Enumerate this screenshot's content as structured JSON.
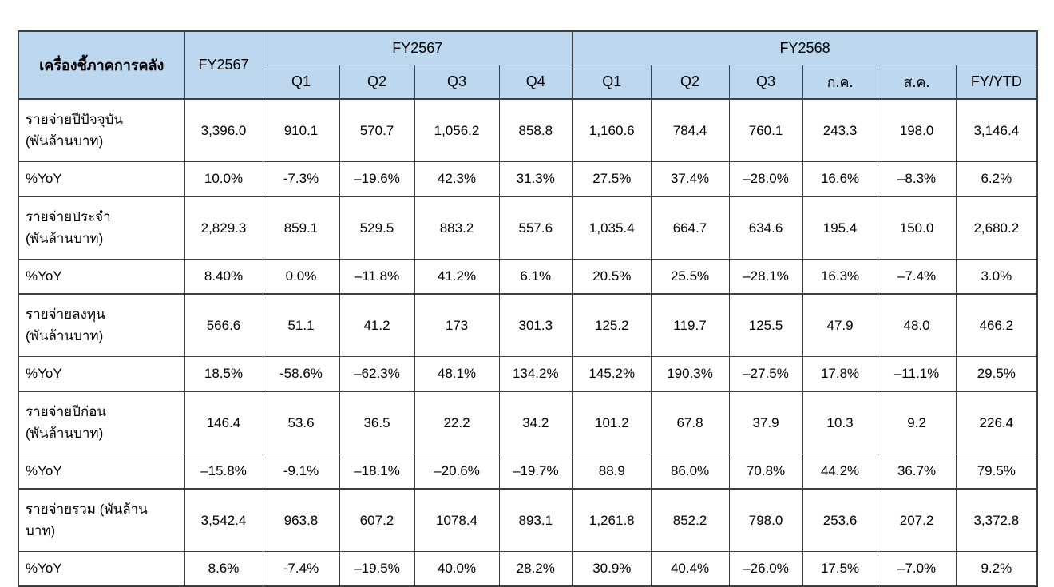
{
  "table": {
    "colors": {
      "header_bg": "#BDD7EE",
      "border": "#3f3f3f",
      "text": "#000000"
    },
    "header": {
      "indicator_label": "เครื่องชี้ภาคการคลัง",
      "fy2567_annual": "FY2567",
      "fy2567_group": "FY2567",
      "fy2568_group": "FY2568",
      "fy2567_quarters": [
        "Q1",
        "Q2",
        "Q3",
        "Q4"
      ],
      "fy2568_periods": [
        "Q1",
        "Q2",
        "Q3",
        "ก.ค.",
        "ส.ค.",
        "FY/YTD"
      ]
    },
    "rows": [
      {
        "type": "expense",
        "label": "รายจ่ายปีปัจจุบัน\n(พันล้านบาท)",
        "values": [
          "3,396.0",
          "910.1",
          "570.7",
          "1,056.2",
          "858.8",
          "1,160.6",
          "784.4",
          "760.1",
          "243.3",
          "198.0",
          "3,146.4"
        ]
      },
      {
        "type": "yoy",
        "label": "%YoY",
        "values": [
          "10.0%",
          "-7.3%",
          "–19.6%",
          "42.3%",
          "31.3%",
          "27.5%",
          "37.4%",
          "–28.0%",
          "16.6%",
          "–8.3%",
          "6.2%"
        ]
      },
      {
        "type": "expense",
        "label": "รายจ่ายประจำ\n(พันล้านบาท)",
        "values": [
          "2,829.3",
          "859.1",
          "529.5",
          "883.2",
          "557.6",
          "1,035.4",
          "664.7",
          "634.6",
          "195.4",
          "150.0",
          "2,680.2"
        ]
      },
      {
        "type": "yoy",
        "label": "%YoY",
        "values": [
          "8.40%",
          "0.0%",
          "–11.8%",
          "41.2%",
          "6.1%",
          "20.5%",
          "25.5%",
          "–28.1%",
          "16.3%",
          "–7.4%",
          "3.0%"
        ]
      },
      {
        "type": "expense",
        "label": "รายจ่ายลงทุน\n(พันล้านบาท)",
        "values": [
          "566.6",
          "51.1",
          "41.2",
          "173",
          "301.3",
          "125.2",
          "119.7",
          "125.5",
          "47.9",
          "48.0",
          "466.2"
        ]
      },
      {
        "type": "yoy",
        "label": "%YoY",
        "values": [
          "18.5%",
          "-58.6%",
          "–62.3%",
          "48.1%",
          "134.2%",
          "145.2%",
          "190.3%",
          "–27.5%",
          "17.8%",
          "–11.1%",
          "29.5%"
        ]
      },
      {
        "type": "expense",
        "label": "รายจ่ายปีก่อน\n(พันล้านบาท)",
        "values": [
          "146.4",
          "53.6",
          "36.5",
          "22.2",
          "34.2",
          "101.2",
          "67.8",
          "37.9",
          "10.3",
          "9.2",
          "226.4"
        ]
      },
      {
        "type": "yoy",
        "label": "%YoY",
        "values": [
          "–15.8%",
          "-9.1%",
          "–18.1%",
          "–20.6%",
          "–19.7%",
          "88.9",
          "86.0%",
          "70.8%",
          "44.2%",
          "36.7%",
          "79.5%"
        ]
      },
      {
        "type": "expense",
        "label": "รายจ่ายรวม (พันล้าน\nบาท)",
        "values": [
          "3,542.4",
          "963.8",
          "607.2",
          "1078.4",
          "893.1",
          "1,261.8",
          "852.2",
          "798.0",
          "253.6",
          "207.2",
          "3,372.8"
        ]
      },
      {
        "type": "yoy",
        "label": "%YoY",
        "values": [
          "8.6%",
          "-7.4%",
          "–19.5%",
          "40.0%",
          "28.2%",
          "30.9%",
          "40.4%",
          "–26.0%",
          "17.5%",
          "–7.0%",
          "9.2%"
        ]
      }
    ]
  }
}
